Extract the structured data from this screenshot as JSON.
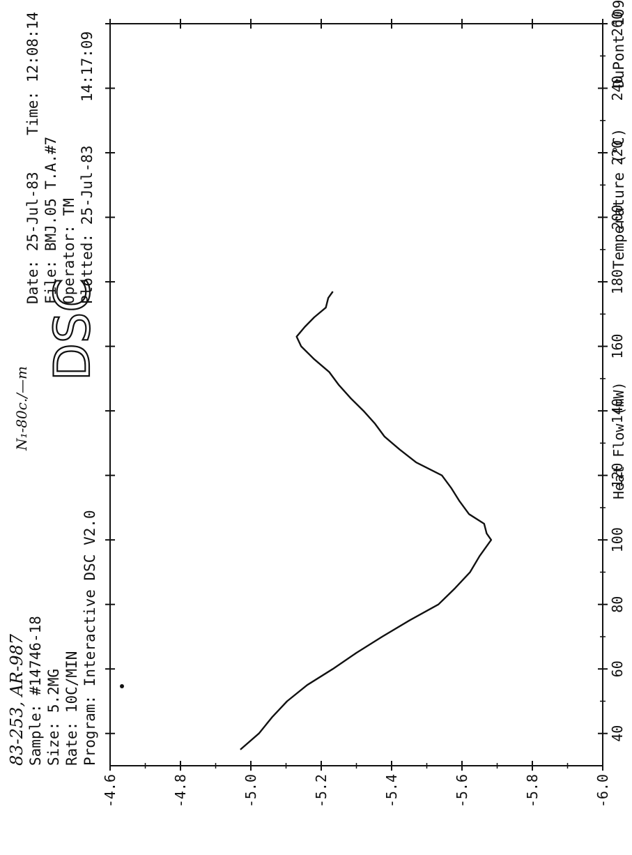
{
  "header_left": {
    "handwritten": "83-253, AR-987",
    "sample": "Sample: #14746-18",
    "size": "Size: 5.2MG",
    "rate": "Rate: 10C/MIN",
    "program": "Program: Interactive DSC  V2.0"
  },
  "handwritten_note": "N₁-80c./—m",
  "header_title": "DSC",
  "header_right": {
    "date": "Date: 25-Jul-83",
    "time": "Time: 12:08:14",
    "file": "File: BMJ.05 T.A.#7",
    "operator": "Operator: TM",
    "plotted": "Plotted: 25-Jul-83",
    "plotted_time": "14:17:09"
  },
  "instrument_label": "DuPont 1090",
  "chart_data": {
    "type": "line",
    "title": "DSC",
    "xlabel": "Temperature (°C)",
    "ylabel": "Heat Flow (mW)",
    "xlim": [
      30,
      260
    ],
    "ylim": [
      -6.0,
      -4.6
    ],
    "x_ticks": [
      40,
      60,
      80,
      100,
      120,
      140,
      160,
      180,
      200,
      220,
      240,
      260
    ],
    "x_tick_labels": [
      "40",
      "60",
      "80",
      "100",
      "120",
      "140",
      "160",
      "180",
      "200",
      "220",
      "240",
      "260"
    ],
    "y_ticks": [
      -6.0,
      -5.8,
      -5.6,
      -5.4,
      -5.2,
      -5.0,
      -4.8,
      -4.6
    ],
    "y_tick_labels": [
      "-6.0",
      "-5.8",
      "-5.6",
      "-5.4",
      "-5.2",
      "-5.0",
      "-4.8",
      "-4.6"
    ],
    "grid": false,
    "series": [
      {
        "x": [
          35,
          40,
          45,
          50,
          55,
          60,
          65,
          70,
          75,
          80,
          85,
          90,
          95,
          100,
          102,
          105,
          108,
          112,
          116,
          120,
          124,
          128,
          132,
          136,
          140,
          144,
          148,
          152,
          156,
          160,
          163,
          166,
          169,
          172,
          175,
          177
        ],
        "y": [
          -4.97,
          -5.02,
          -5.06,
          -5.1,
          -5.16,
          -5.23,
          -5.3,
          -5.37,
          -5.45,
          -5.53,
          -5.58,
          -5.62,
          -5.65,
          -5.68,
          -5.67,
          -5.66,
          -5.62,
          -5.59,
          -5.57,
          -5.54,
          -5.47,
          -5.42,
          -5.38,
          -5.35,
          -5.32,
          -5.28,
          -5.25,
          -5.22,
          -5.18,
          -5.14,
          -5.13,
          -5.15,
          -5.18,
          -5.21,
          -5.22,
          -5.23
        ]
      }
    ]
  }
}
